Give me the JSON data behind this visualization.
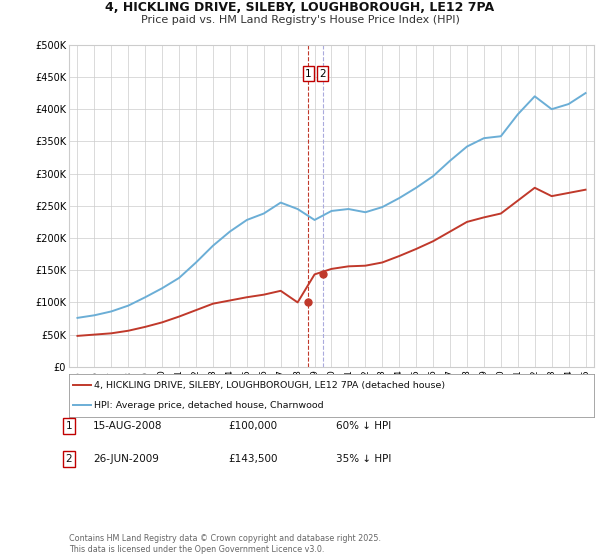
{
  "title_line1": "4, HICKLING DRIVE, SILEBY, LOUGHBOROUGH, LE12 7PA",
  "title_line2": "Price paid vs. HM Land Registry's House Price Index (HPI)",
  "ylim": [
    0,
    500000
  ],
  "yticks": [
    0,
    50000,
    100000,
    150000,
    200000,
    250000,
    300000,
    350000,
    400000,
    450000,
    500000
  ],
  "ytick_labels": [
    "£0",
    "£50K",
    "£100K",
    "£150K",
    "£200K",
    "£250K",
    "£300K",
    "£350K",
    "£400K",
    "£450K",
    "£500K"
  ],
  "hpi_color": "#6baed6",
  "paid_color": "#c0392b",
  "vline1_color": "#c0392b",
  "vline2_color": "#aaaadd",
  "marker1_date_x": 2008.62,
  "marker2_date_x": 2009.48,
  "marker1_price": 100000,
  "marker2_price": 143500,
  "legend_paid_label": "4, HICKLING DRIVE, SILEBY, LOUGHBOROUGH, LE12 7PA (detached house)",
  "legend_hpi_label": "HPI: Average price, detached house, Charnwood",
  "table_rows": [
    {
      "num": "1",
      "date": "15-AUG-2008",
      "price": "£100,000",
      "note": "60% ↓ HPI"
    },
    {
      "num": "2",
      "date": "26-JUN-2009",
      "price": "£143,500",
      "note": "35% ↓ HPI"
    }
  ],
  "footnote": "Contains HM Land Registry data © Crown copyright and database right 2025.\nThis data is licensed under the Open Government Licence v3.0.",
  "bg_color": "#ffffff",
  "grid_color": "#cccccc",
  "xtick_years": [
    1995,
    1996,
    1997,
    1998,
    1999,
    2000,
    2001,
    2002,
    2003,
    2004,
    2005,
    2006,
    2007,
    2008,
    2009,
    2010,
    2011,
    2012,
    2013,
    2014,
    2015,
    2016,
    2017,
    2018,
    2019,
    2020,
    2021,
    2022,
    2023,
    2024,
    2025
  ],
  "hpi_years": [
    1995,
    1996,
    1997,
    1998,
    1999,
    2000,
    2001,
    2002,
    2003,
    2004,
    2005,
    2006,
    2007,
    2008,
    2009,
    2010,
    2011,
    2012,
    2013,
    2014,
    2015,
    2016,
    2017,
    2018,
    2019,
    2020,
    2021,
    2022,
    2023,
    2024,
    2025
  ],
  "hpi_values": [
    76000,
    80000,
    86000,
    95000,
    108000,
    122000,
    138000,
    162000,
    188000,
    210000,
    228000,
    238000,
    255000,
    245000,
    228000,
    242000,
    245000,
    240000,
    248000,
    262000,
    278000,
    296000,
    320000,
    342000,
    355000,
    358000,
    392000,
    420000,
    400000,
    408000,
    425000
  ],
  "paid_years": [
    1995,
    1996,
    1997,
    1998,
    1999,
    2000,
    2001,
    2002,
    2003,
    2004,
    2005,
    2006,
    2007,
    2008,
    2009,
    2010,
    2011,
    2012,
    2013,
    2014,
    2015,
    2016,
    2017,
    2018,
    2019,
    2020,
    2021,
    2022,
    2023,
    2024,
    2025
  ],
  "paid_values": [
    48000,
    50000,
    52000,
    56000,
    62000,
    69000,
    78000,
    88000,
    98000,
    103000,
    108000,
    112000,
    118000,
    100000,
    143500,
    152000,
    156000,
    157000,
    162000,
    172000,
    183000,
    195000,
    210000,
    225000,
    232000,
    238000,
    258000,
    278000,
    265000,
    270000,
    275000
  ]
}
